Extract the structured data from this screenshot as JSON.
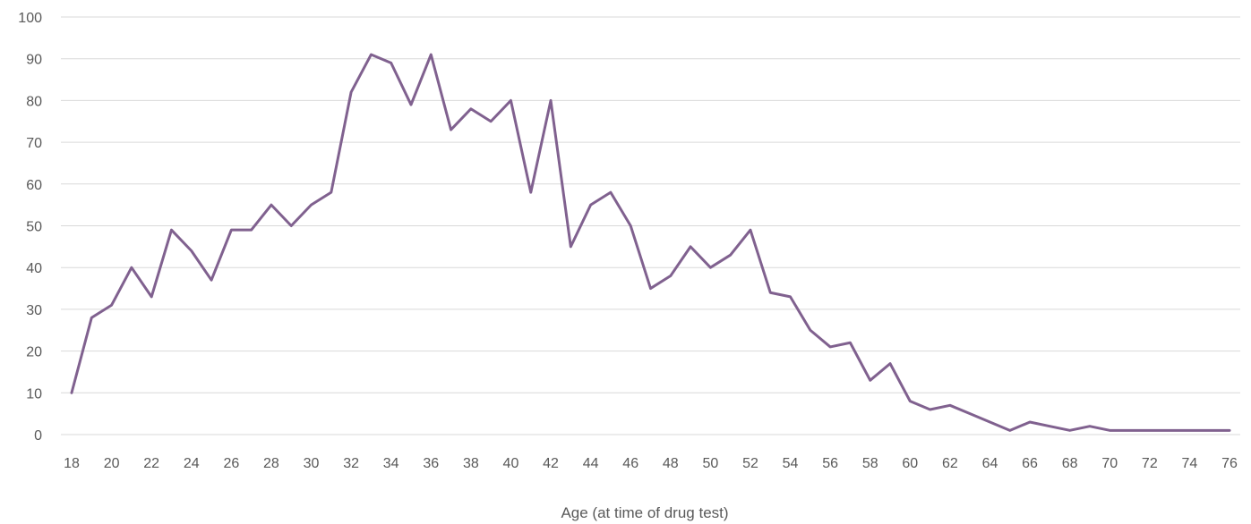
{
  "chart_data": {
    "type": "line",
    "title": "",
    "xlabel": "Age (at time of drug test)",
    "ylabel": "",
    "ylim": [
      0,
      100
    ],
    "y_ticks": [
      0,
      10,
      20,
      30,
      40,
      50,
      60,
      70,
      80,
      90,
      100
    ],
    "x_ticks": [
      18,
      20,
      22,
      24,
      26,
      28,
      30,
      32,
      34,
      36,
      38,
      40,
      42,
      44,
      46,
      48,
      50,
      52,
      54,
      56,
      58,
      60,
      62,
      64,
      66,
      68,
      70,
      72,
      74,
      76
    ],
    "grid": true,
    "legend": "none",
    "x": [
      18,
      19,
      20,
      21,
      22,
      23,
      24,
      25,
      26,
      27,
      28,
      29,
      30,
      31,
      32,
      33,
      34,
      35,
      36,
      37,
      38,
      39,
      40,
      41,
      42,
      43,
      44,
      45,
      46,
      47,
      48,
      49,
      50,
      51,
      52,
      53,
      54,
      55,
      56,
      57,
      58,
      59,
      60,
      61,
      62,
      63,
      64,
      65,
      66,
      67,
      68,
      69,
      70,
      71,
      72,
      73,
      74,
      75,
      76
    ],
    "series": [
      {
        "color": "#80618f",
        "values": [
          10,
          28,
          31,
          40,
          33,
          49,
          44,
          37,
          49,
          49,
          55,
          50,
          55,
          58,
          82,
          91,
          89,
          79,
          91,
          73,
          78,
          75,
          80,
          58,
          80,
          45,
          55,
          58,
          50,
          35,
          38,
          45,
          40,
          43,
          49,
          34,
          33,
          25,
          21,
          22,
          13,
          17,
          8,
          6,
          7,
          5,
          3,
          1,
          3,
          2,
          1,
          2,
          1,
          1,
          1,
          1,
          1,
          1,
          1
        ]
      }
    ]
  }
}
